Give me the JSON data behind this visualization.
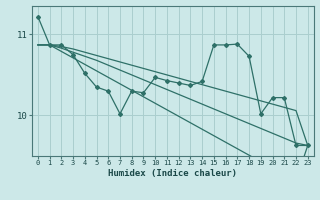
{
  "xlabel": "Humidex (Indice chaleur)",
  "background_color": "#cce8e8",
  "grid_color": "#aacece",
  "line_color": "#2e7068",
  "xlim": [
    -0.5,
    23.5
  ],
  "ylim": [
    9.5,
    11.35
  ],
  "x_ticks": [
    0,
    1,
    2,
    3,
    4,
    5,
    6,
    7,
    8,
    9,
    10,
    11,
    12,
    13,
    14,
    15,
    16,
    17,
    18,
    19,
    20,
    21,
    22,
    23
  ],
  "y_ticks": [
    10,
    11
  ],
  "series_jagged": [
    11.22,
    10.87,
    10.87,
    10.75,
    10.52,
    10.35,
    10.3,
    10.02,
    10.3,
    10.28,
    10.47,
    10.43,
    10.4,
    10.37,
    10.42,
    10.87,
    10.87,
    10.88,
    10.73,
    10.02,
    10.22,
    10.22,
    9.63,
    9.63
  ],
  "series_line1": [
    10.87,
    10.87,
    10.85,
    10.82,
    10.78,
    10.74,
    10.7,
    10.66,
    10.62,
    10.58,
    10.54,
    10.5,
    10.46,
    10.42,
    10.38,
    10.34,
    10.3,
    10.26,
    10.22,
    10.18,
    10.14,
    10.1,
    10.06,
    9.63
  ],
  "series_line2": [
    10.87,
    10.87,
    10.83,
    10.78,
    10.73,
    10.68,
    10.62,
    10.56,
    10.5,
    10.44,
    10.38,
    10.32,
    10.26,
    10.2,
    10.14,
    10.08,
    10.02,
    9.96,
    9.9,
    9.84,
    9.78,
    9.72,
    9.66,
    9.63
  ],
  "series_line3": [
    10.87,
    10.87,
    10.79,
    10.71,
    10.63,
    10.55,
    10.47,
    10.39,
    10.31,
    10.23,
    10.15,
    10.07,
    9.99,
    9.91,
    9.83,
    9.75,
    9.67,
    9.59,
    9.51,
    9.43,
    9.35,
    9.27,
    9.19,
    9.63
  ]
}
